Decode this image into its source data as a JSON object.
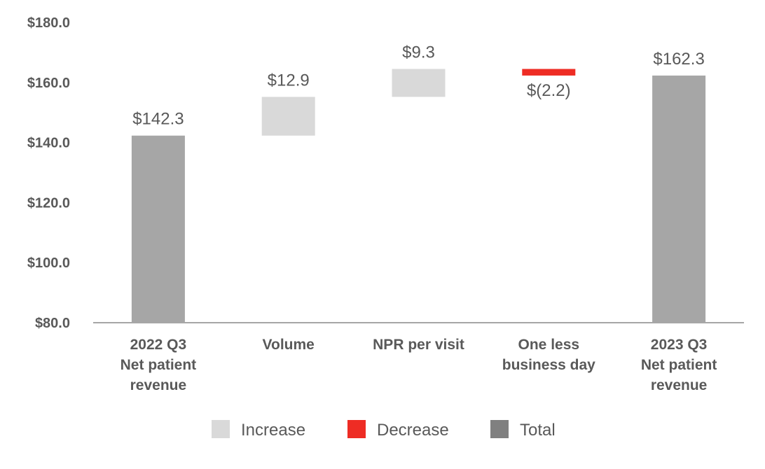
{
  "chart_data": {
    "type": "bar",
    "subtype": "waterfall",
    "categories": [
      [
        "2022 Q3",
        "Net patient",
        "revenue"
      ],
      [
        "Volume"
      ],
      [
        "NPR per visit"
      ],
      [
        "One less",
        "business day"
      ],
      [
        "2023 Q3",
        "Net patient",
        "revenue"
      ]
    ],
    "bars": [
      {
        "kind": "total",
        "start": 80.0,
        "end": 142.3,
        "label": "$142.3"
      },
      {
        "kind": "increase",
        "start": 142.3,
        "end": 155.2,
        "label": "$12.9"
      },
      {
        "kind": "increase",
        "start": 155.2,
        "end": 164.5,
        "label": "$9.3"
      },
      {
        "kind": "decrease",
        "start": 164.5,
        "end": 162.3,
        "label": "$(2.2)"
      },
      {
        "kind": "total",
        "start": 80.0,
        "end": 162.3,
        "label": "$162.3"
      }
    ],
    "ylim": [
      80,
      180
    ],
    "yticks": [
      "$80.0",
      "$100.0",
      "$120.0",
      "$140.0",
      "$160.0",
      "$180.0"
    ],
    "ytick_values": [
      80,
      100,
      120,
      140,
      160,
      180
    ],
    "grid": false,
    "legend_position": "bottom-center",
    "legend": [
      {
        "kind": "increase",
        "label": "Increase"
      },
      {
        "kind": "decrease",
        "label": "Decrease"
      },
      {
        "kind": "total",
        "label": "Total"
      }
    ],
    "colors": {
      "increase": "#d9d9d9",
      "decrease": "#ee2c24",
      "total": "#a6a6a6",
      "legend_total": "#808080",
      "text": "#595959",
      "axis": "#a6a6a6"
    }
  }
}
